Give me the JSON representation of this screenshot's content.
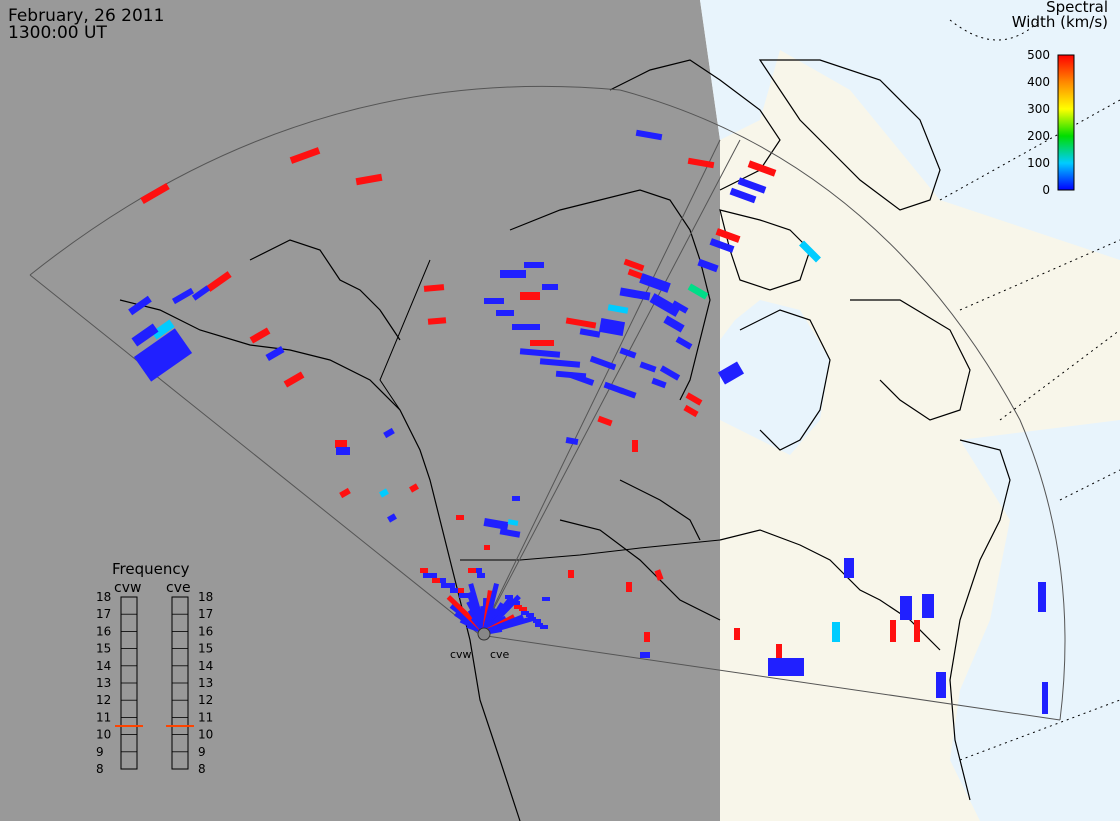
{
  "header": {
    "date": "February, 26 2011",
    "time": "1300:00 UT"
  },
  "colorbar": {
    "title_line1": "Spectral",
    "title_line2": "Width (km/s)",
    "ticks": [
      "500",
      "400",
      "300",
      "200",
      "100",
      "0"
    ],
    "colors": [
      "#ff0000",
      "#ff8800",
      "#ffff00",
      "#00dd00",
      "#00ffff",
      "#0000ff"
    ]
  },
  "frequency": {
    "title": "Frequency",
    "radars": [
      "cvw",
      "cve"
    ],
    "ticks": [
      "18",
      "17",
      "16",
      "15",
      "14",
      "13",
      "12",
      "11",
      "10",
      "9",
      "8"
    ],
    "values_mhz": [
      10.5,
      10.5
    ],
    "marker_color": "#ff4400"
  },
  "radar_sites": [
    "cvw",
    "cve"
  ],
  "colors": {
    "night": "#999999",
    "day": "#f8f6ea",
    "ocean_day": "#e8f4fc",
    "scatter_low": "#2020ff",
    "scatter_high": "#ff1010"
  }
}
